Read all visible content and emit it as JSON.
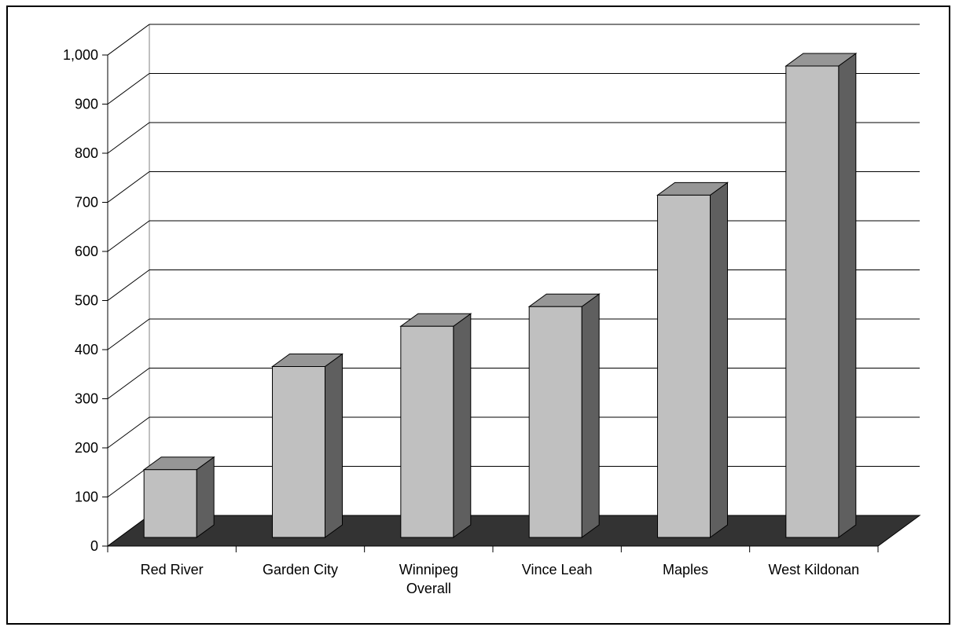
{
  "chart_data": {
    "type": "bar",
    "style": "3d-column",
    "categories": [
      "Red River",
      "Garden City",
      "Winnipeg\nOverall",
      "Vince Leah",
      "Maples",
      "West Kildonan"
    ],
    "values": [
      138,
      348,
      430,
      470,
      697,
      960
    ],
    "ylim": [
      0,
      1000
    ],
    "yticks": [
      0,
      100,
      200,
      300,
      400,
      500,
      600,
      700,
      800,
      900,
      1000
    ],
    "ytick_labels": [
      "0",
      "100",
      "200",
      "300",
      "400",
      "500",
      "600",
      "700",
      "800",
      "900",
      "1,000"
    ],
    "title": "",
    "xlabel": "",
    "ylabel": "",
    "grid": true,
    "legend": "none",
    "colors": {
      "bar_front": "#c0c0c0",
      "bar_top": "#969696",
      "bar_side": "#5f5f5f",
      "floor": "#333333",
      "gridline": "#000000"
    }
  }
}
